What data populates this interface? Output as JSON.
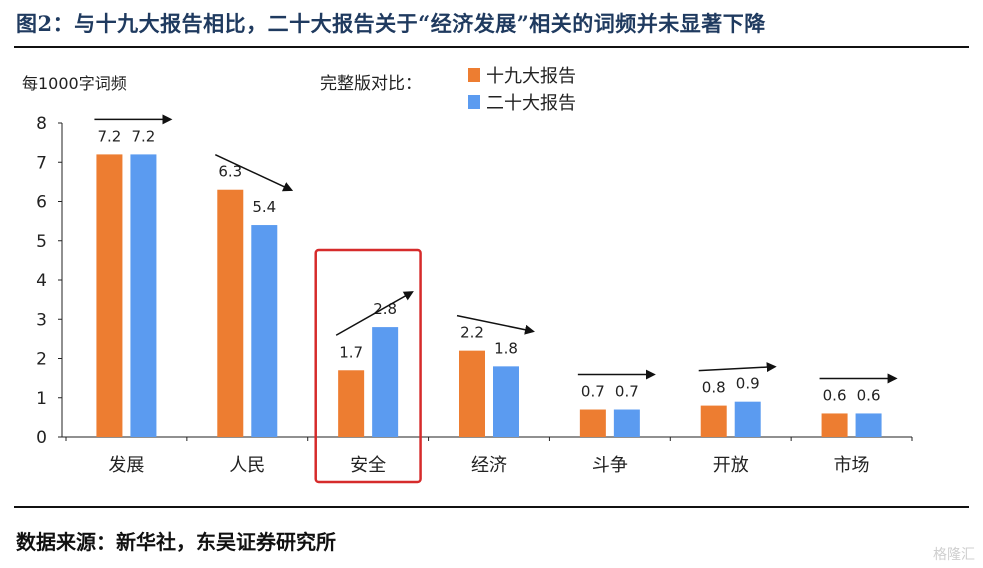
{
  "title": "图2：与十九大报告相比，二十大报告关于“经济发展”相关的词频并未显著下降",
  "source": "数据来源：新华社，东吴证券研究所",
  "watermark": "格隆汇",
  "chart_data": {
    "type": "bar",
    "ylabel": "每1000字词频",
    "legend_title": "完整版对比：",
    "legend_position": "top-center",
    "categories": [
      "发展",
      "人民",
      "安全",
      "经济",
      "斗争",
      "开放",
      "市场"
    ],
    "series": [
      {
        "name": "十九大报告",
        "color": "#ed7d31",
        "values": [
          7.2,
          6.3,
          1.7,
          2.2,
          0.7,
          0.8,
          0.6
        ]
      },
      {
        "name": "二十大报告",
        "color": "#5b9bf0",
        "values": [
          7.2,
          5.4,
          2.8,
          1.8,
          0.7,
          0.9,
          0.6
        ]
      }
    ],
    "ylim": [
      0,
      8
    ],
    "yticks": [
      0,
      1,
      2,
      3,
      4,
      5,
      6,
      7,
      8
    ],
    "grid": false,
    "highlight_category": "安全",
    "highlight_color": "#d62b2b"
  }
}
